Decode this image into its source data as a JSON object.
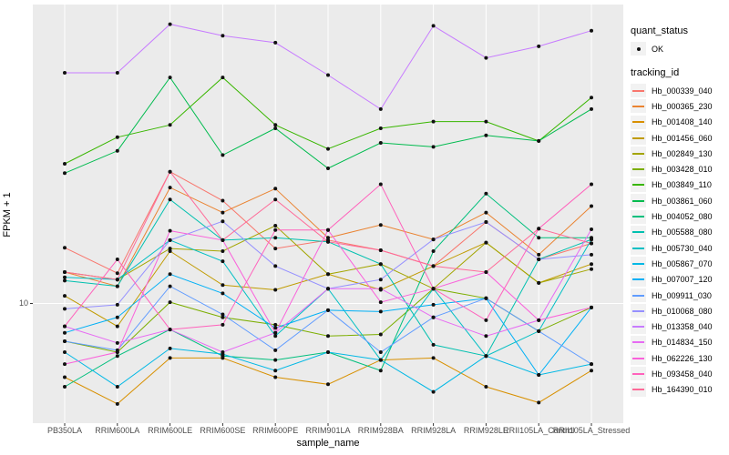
{
  "figure": {
    "y_axis": {
      "title": "FPKM + 1",
      "tick_labels": [
        "10"
      ],
      "scale": "log10"
    },
    "x_axis": {
      "title": "sample_name"
    },
    "legend": {
      "quant_status": {
        "title": "quant_status",
        "items": [
          {
            "label": "OK",
            "marker": "point-icon"
          }
        ]
      },
      "tracking_id": {
        "title": "tracking_id"
      }
    }
  },
  "colors": {
    "panel_background": "#EBEBEB",
    "gridline": "#FFFFFF",
    "tick_mark": "#333333",
    "tick_text": "#4D4D4D",
    "point": "#111111",
    "legend_key_background": "#F2F2F2"
  },
  "chart_data": {
    "type": "line",
    "title": "",
    "xlabel": "sample_name",
    "ylabel": "FPKM + 1",
    "y_scale": "log10",
    "y_ticks": [
      10
    ],
    "ylim_approx": [
      4,
      98
    ],
    "grid": "major",
    "legend_position": "right",
    "point_marker": "black dot on every value (quant_status OK)",
    "categories": [
      "PB350LA",
      "RRIM600LA",
      "RRIM600LE",
      "RRIM600SE",
      "RRIM600PE",
      "RRIM901LA",
      "RRIM928BA",
      "RRIM928LA",
      "RRIM928LE",
      "RRII105LA_Control",
      "RRII105LA_Stressed"
    ],
    "series": [
      {
        "name": "Hb_000339_040",
        "color": "#F8766D",
        "values": [
          15.3,
          12.6,
          27.3,
          21.9,
          15.2,
          16.2,
          15.0,
          13.3,
          18.6,
          14.0,
          15.8
        ]
      },
      {
        "name": "Hb_000365_230",
        "color": "#EA8331",
        "values": [
          12.7,
          11.4,
          24.2,
          20.0,
          24.0,
          16.5,
          18.2,
          16.3,
          20.0,
          14.5,
          21.0
        ]
      },
      {
        "name": "Hb_001408_140",
        "color": "#D89000",
        "values": [
          5.7,
          4.65,
          6.6,
          6.6,
          5.7,
          5.4,
          6.5,
          6.6,
          5.3,
          4.7,
          6.0
        ]
      },
      {
        "name": "Hb_001456_060",
        "color": "#C09B00",
        "values": [
          10.6,
          8.4,
          14.9,
          11.5,
          11.1,
          12.5,
          11.1,
          13.3,
          15.9,
          11.7,
          13.5
        ]
      },
      {
        "name": "Hb_002849_130",
        "color": "#A3A500",
        "values": [
          12.7,
          12.0,
          15.2,
          14.9,
          18.1,
          12.5,
          13.5,
          11.2,
          15.9,
          11.7,
          13.0
        ]
      },
      {
        "name": "Hb_003428_010",
        "color": "#7CAE00",
        "values": [
          7.5,
          6.9,
          10.1,
          9.0,
          8.5,
          7.8,
          7.9,
          11.2,
          10.4,
          8.1,
          9.7
        ]
      },
      {
        "name": "Hb_003849_110",
        "color": "#39B600",
        "values": [
          29.0,
          35.5,
          39.0,
          56.0,
          39.0,
          32.5,
          38.0,
          40.0,
          40.0,
          34.5,
          48.0
        ]
      },
      {
        "name": "Hb_003861_060",
        "color": "#00BB4E",
        "values": [
          27.0,
          32.0,
          56.0,
          31.0,
          38.0,
          28.0,
          34.0,
          33.0,
          36.0,
          34.5,
          44.0
        ]
      },
      {
        "name": "Hb_004052_080",
        "color": "#00BF7D",
        "values": [
          5.3,
          6.7,
          8.2,
          6.7,
          6.5,
          6.9,
          6.0,
          14.9,
          23.1,
          16.5,
          16.5
        ]
      },
      {
        "name": "Hb_005588_080",
        "color": "#00C0AF",
        "values": [
          11.9,
          11.4,
          22.1,
          16.2,
          16.5,
          16.0,
          13.5,
          7.3,
          6.7,
          14.0,
          16.3
        ]
      },
      {
        "name": "Hb_005730_040",
        "color": "#00BFC4",
        "values": [
          12.2,
          12.0,
          16.2,
          13.8,
          7.8,
          11.2,
          6.5,
          11.2,
          6.7,
          8.1,
          16.3
        ]
      },
      {
        "name": "Hb_005867_070",
        "color": "#00B8E5",
        "values": [
          6.9,
          5.3,
          7.1,
          6.8,
          6.0,
          6.9,
          6.5,
          5.1,
          6.7,
          5.8,
          6.3
        ]
      },
      {
        "name": "Hb_007007_120",
        "color": "#00B0F6",
        "values": [
          8.0,
          9.0,
          12.5,
          10.8,
          8.3,
          9.5,
          9.4,
          9.9,
          10.4,
          5.8,
          9.7
        ]
      },
      {
        "name": "Hb_009911_030",
        "color": "#619CFF",
        "values": [
          7.5,
          7.0,
          11.4,
          9.2,
          7.0,
          9.5,
          6.9,
          9.0,
          10.4,
          8.1,
          6.3
        ]
      },
      {
        "name": "Hb_010068_080",
        "color": "#9590FF",
        "values": [
          9.6,
          9.9,
          16.2,
          18.7,
          13.3,
          11.2,
          12.0,
          16.3,
          18.6,
          14.0,
          14.5
        ]
      },
      {
        "name": "Hb_013358_040",
        "color": "#C77CFF",
        "values": [
          58.0,
          58.0,
          84.0,
          77.0,
          73.0,
          57.0,
          44.0,
          83.0,
          65.0,
          71.0,
          80.0
        ]
      },
      {
        "name": "Hb_014834_150",
        "color": "#E76BF3",
        "values": [
          8.4,
          7.4,
          8.2,
          6.9,
          8.0,
          11.2,
          11.2,
          9.0,
          7.8,
          8.8,
          17.6
        ]
      },
      {
        "name": "Hb_062226_130",
        "color": "#FA62DB",
        "values": [
          6.3,
          6.9,
          17.4,
          16.2,
          8.0,
          17.5,
          10.1,
          11.2,
          12.7,
          8.8,
          9.7
        ]
      },
      {
        "name": "Hb_093458_040",
        "color": "#FF62BC",
        "values": [
          8.4,
          14.0,
          8.2,
          8.5,
          17.5,
          17.5,
          24.8,
          11.2,
          8.8,
          17.7,
          24.8
        ]
      },
      {
        "name": "Hb_164390_010",
        "color": "#FF6A98",
        "values": [
          12.7,
          12.0,
          27.3,
          16.2,
          22.1,
          16.0,
          15.0,
          13.3,
          12.7,
          17.7,
          15.8
        ]
      }
    ]
  }
}
